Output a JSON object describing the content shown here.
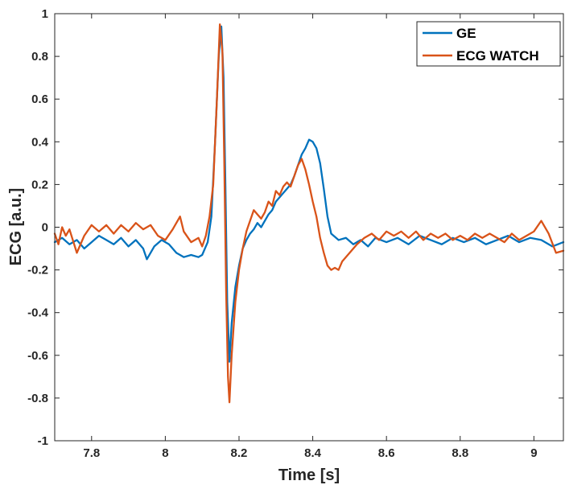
{
  "chart_data": {
    "type": "line",
    "title": "",
    "xlabel": "Time [s]",
    "ylabel": "ECG [a.u.]",
    "xlim": [
      7.7,
      9.08
    ],
    "ylim": [
      -1,
      1
    ],
    "xticks": [
      7.8,
      8.0,
      8.2,
      8.4,
      8.6,
      8.8,
      9.0
    ],
    "xtick_labels": [
      "7.8",
      "8",
      "8.2",
      "8.4",
      "8.6",
      "8.8",
      "9"
    ],
    "yticks": [
      -1,
      -0.8,
      -0.6,
      -0.4,
      -0.2,
      0,
      0.2,
      0.4,
      0.6,
      0.8,
      1
    ],
    "ytick_labels": [
      "-1",
      "-0.8",
      "-0.6",
      "-0.4",
      "-0.2",
      "0",
      "0.2",
      "0.4",
      "0.6",
      "0.8",
      "1"
    ],
    "grid": false,
    "legend_position": "top-right",
    "series": [
      {
        "name": "GE",
        "color": "#0072BD",
        "points": [
          [
            7.7,
            -0.07
          ],
          [
            7.72,
            -0.05
          ],
          [
            7.74,
            -0.08
          ],
          [
            7.76,
            -0.06
          ],
          [
            7.78,
            -0.1
          ],
          [
            7.8,
            -0.07
          ],
          [
            7.82,
            -0.04
          ],
          [
            7.84,
            -0.06
          ],
          [
            7.86,
            -0.08
          ],
          [
            7.88,
            -0.05
          ],
          [
            7.9,
            -0.09
          ],
          [
            7.92,
            -0.06
          ],
          [
            7.94,
            -0.1
          ],
          [
            7.95,
            -0.15
          ],
          [
            7.97,
            -0.09
          ],
          [
            7.99,
            -0.06
          ],
          [
            8.01,
            -0.08
          ],
          [
            8.03,
            -0.12
          ],
          [
            8.05,
            -0.14
          ],
          [
            8.07,
            -0.13
          ],
          [
            8.09,
            -0.14
          ],
          [
            8.1,
            -0.13
          ],
          [
            8.115,
            -0.07
          ],
          [
            8.125,
            0.05
          ],
          [
            8.135,
            0.4
          ],
          [
            8.145,
            0.8
          ],
          [
            8.152,
            0.94
          ],
          [
            8.158,
            0.7
          ],
          [
            8.163,
            0.2
          ],
          [
            8.168,
            -0.35
          ],
          [
            8.174,
            -0.63
          ],
          [
            8.18,
            -0.45
          ],
          [
            8.19,
            -0.28
          ],
          [
            8.2,
            -0.18
          ],
          [
            8.21,
            -0.1
          ],
          [
            8.22,
            -0.06
          ],
          [
            8.23,
            -0.03
          ],
          [
            8.24,
            -0.01
          ],
          [
            8.25,
            0.02
          ],
          [
            8.26,
            0.0
          ],
          [
            8.27,
            0.03
          ],
          [
            8.28,
            0.06
          ],
          [
            8.29,
            0.08
          ],
          [
            8.3,
            0.12
          ],
          [
            8.31,
            0.14
          ],
          [
            8.32,
            0.16
          ],
          [
            8.33,
            0.18
          ],
          [
            8.34,
            0.2
          ],
          [
            8.35,
            0.24
          ],
          [
            8.36,
            0.29
          ],
          [
            8.37,
            0.34
          ],
          [
            8.38,
            0.37
          ],
          [
            8.39,
            0.41
          ],
          [
            8.4,
            0.4
          ],
          [
            8.41,
            0.37
          ],
          [
            8.42,
            0.3
          ],
          [
            8.43,
            0.18
          ],
          [
            8.44,
            0.05
          ],
          [
            8.45,
            -0.03
          ],
          [
            8.47,
            -0.06
          ],
          [
            8.49,
            -0.05
          ],
          [
            8.51,
            -0.08
          ],
          [
            8.53,
            -0.06
          ],
          [
            8.55,
            -0.09
          ],
          [
            8.57,
            -0.05
          ],
          [
            8.6,
            -0.07
          ],
          [
            8.63,
            -0.05
          ],
          [
            8.66,
            -0.08
          ],
          [
            8.69,
            -0.04
          ],
          [
            8.72,
            -0.06
          ],
          [
            8.75,
            -0.08
          ],
          [
            8.78,
            -0.05
          ],
          [
            8.81,
            -0.07
          ],
          [
            8.84,
            -0.05
          ],
          [
            8.87,
            -0.08
          ],
          [
            8.9,
            -0.06
          ],
          [
            8.93,
            -0.04
          ],
          [
            8.96,
            -0.07
          ],
          [
            8.99,
            -0.05
          ],
          [
            9.02,
            -0.06
          ],
          [
            9.05,
            -0.09
          ],
          [
            9.08,
            -0.07
          ]
        ]
      },
      {
        "name": "ECG WATCH",
        "color": "#D95319",
        "points": [
          [
            7.7,
            -0.03
          ],
          [
            7.71,
            -0.08
          ],
          [
            7.72,
            0.0
          ],
          [
            7.73,
            -0.04
          ],
          [
            7.74,
            -0.01
          ],
          [
            7.76,
            -0.12
          ],
          [
            7.78,
            -0.04
          ],
          [
            7.8,
            0.01
          ],
          [
            7.82,
            -0.02
          ],
          [
            7.84,
            0.01
          ],
          [
            7.86,
            -0.03
          ],
          [
            7.88,
            0.01
          ],
          [
            7.9,
            -0.02
          ],
          [
            7.92,
            0.02
          ],
          [
            7.94,
            -0.01
          ],
          [
            7.96,
            0.01
          ],
          [
            7.98,
            -0.04
          ],
          [
            8.0,
            -0.06
          ],
          [
            8.02,
            -0.01
          ],
          [
            8.04,
            0.05
          ],
          [
            8.05,
            -0.02
          ],
          [
            8.07,
            -0.07
          ],
          [
            8.09,
            -0.05
          ],
          [
            8.1,
            -0.09
          ],
          [
            8.11,
            -0.04
          ],
          [
            8.12,
            0.05
          ],
          [
            8.13,
            0.2
          ],
          [
            8.14,
            0.6
          ],
          [
            8.148,
            0.95
          ],
          [
            8.155,
            0.82
          ],
          [
            8.16,
            0.3
          ],
          [
            8.165,
            -0.3
          ],
          [
            8.17,
            -0.7
          ],
          [
            8.174,
            -0.82
          ],
          [
            8.18,
            -0.6
          ],
          [
            8.19,
            -0.35
          ],
          [
            8.2,
            -0.2
          ],
          [
            8.21,
            -0.1
          ],
          [
            8.22,
            -0.02
          ],
          [
            8.23,
            0.03
          ],
          [
            8.24,
            0.08
          ],
          [
            8.25,
            0.06
          ],
          [
            8.26,
            0.04
          ],
          [
            8.27,
            0.07
          ],
          [
            8.28,
            0.12
          ],
          [
            8.29,
            0.1
          ],
          [
            8.3,
            0.17
          ],
          [
            8.31,
            0.15
          ],
          [
            8.32,
            0.19
          ],
          [
            8.33,
            0.21
          ],
          [
            8.34,
            0.19
          ],
          [
            8.35,
            0.24
          ],
          [
            8.36,
            0.29
          ],
          [
            8.37,
            0.32
          ],
          [
            8.38,
            0.27
          ],
          [
            8.39,
            0.2
          ],
          [
            8.4,
            0.12
          ],
          [
            8.41,
            0.05
          ],
          [
            8.42,
            -0.05
          ],
          [
            8.43,
            -0.12
          ],
          [
            8.44,
            -0.18
          ],
          [
            8.45,
            -0.2
          ],
          [
            8.46,
            -0.19
          ],
          [
            8.47,
            -0.2
          ],
          [
            8.48,
            -0.16
          ],
          [
            8.5,
            -0.12
          ],
          [
            8.52,
            -0.08
          ],
          [
            8.54,
            -0.05
          ],
          [
            8.56,
            -0.03
          ],
          [
            8.58,
            -0.06
          ],
          [
            8.6,
            -0.02
          ],
          [
            8.62,
            -0.04
          ],
          [
            8.64,
            -0.02
          ],
          [
            8.66,
            -0.05
          ],
          [
            8.68,
            -0.02
          ],
          [
            8.7,
            -0.06
          ],
          [
            8.72,
            -0.03
          ],
          [
            8.74,
            -0.05
          ],
          [
            8.76,
            -0.03
          ],
          [
            8.78,
            -0.06
          ],
          [
            8.8,
            -0.04
          ],
          [
            8.82,
            -0.06
          ],
          [
            8.84,
            -0.03
          ],
          [
            8.86,
            -0.05
          ],
          [
            8.88,
            -0.03
          ],
          [
            8.9,
            -0.05
          ],
          [
            8.92,
            -0.07
          ],
          [
            8.94,
            -0.03
          ],
          [
            8.96,
            -0.06
          ],
          [
            8.98,
            -0.04
          ],
          [
            9.0,
            -0.02
          ],
          [
            9.02,
            0.03
          ],
          [
            9.04,
            -0.03
          ],
          [
            9.06,
            -0.12
          ],
          [
            9.08,
            -0.11
          ]
        ]
      }
    ]
  }
}
